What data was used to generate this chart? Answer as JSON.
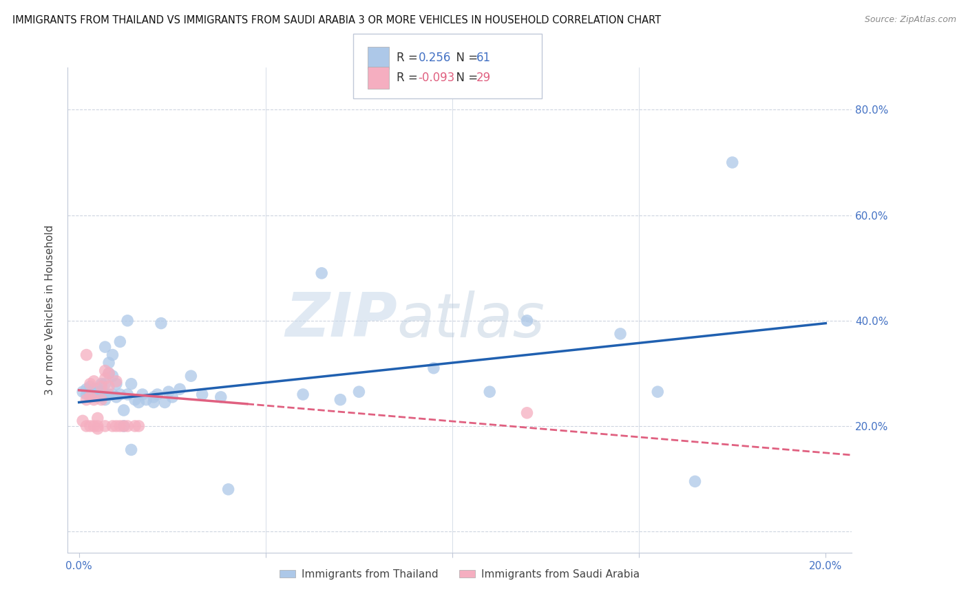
{
  "title": "IMMIGRANTS FROM THAILAND VS IMMIGRANTS FROM SAUDI ARABIA 3 OR MORE VEHICLES IN HOUSEHOLD CORRELATION CHART",
  "source": "Source: ZipAtlas.com",
  "ylabel": "3 or more Vehicles in Household",
  "y_ticks": [
    0.0,
    0.2,
    0.4,
    0.6,
    0.8
  ],
  "y_tick_labels": [
    "",
    "20.0%",
    "40.0%",
    "60.0%",
    "80.0%"
  ],
  "x_ticks": [
    0.0,
    0.05,
    0.1,
    0.15,
    0.2
  ],
  "x_tick_labels": [
    "0.0%",
    "",
    "",
    "",
    "20.0%"
  ],
  "xlim": [
    -0.003,
    0.207
  ],
  "ylim": [
    -0.04,
    0.88
  ],
  "r_thailand": "0.256",
  "n_thailand": "61",
  "r_saudi": "-0.093",
  "n_saudi": "29",
  "thailand_color": "#adc8e8",
  "saudi_color": "#f5aec0",
  "trend_thailand_color": "#2060b0",
  "trend_saudi_color": "#e06080",
  "watermark_zip": "ZIP",
  "watermark_atlas": "atlas",
  "thailand_scatter_x": [
    0.001,
    0.002,
    0.002,
    0.003,
    0.003,
    0.003,
    0.004,
    0.004,
    0.005,
    0.005,
    0.005,
    0.006,
    0.006,
    0.006,
    0.007,
    0.007,
    0.007,
    0.007,
    0.008,
    0.008,
    0.008,
    0.009,
    0.009,
    0.009,
    0.01,
    0.01,
    0.011,
    0.011,
    0.012,
    0.012,
    0.013,
    0.013,
    0.014,
    0.014,
    0.015,
    0.016,
    0.017,
    0.018,
    0.02,
    0.02,
    0.021,
    0.022,
    0.023,
    0.024,
    0.025,
    0.027,
    0.03,
    0.033,
    0.038,
    0.04,
    0.06,
    0.065,
    0.07,
    0.075,
    0.095,
    0.11,
    0.12,
    0.145,
    0.155,
    0.165,
    0.175
  ],
  "thailand_scatter_y": [
    0.265,
    0.26,
    0.27,
    0.255,
    0.26,
    0.275,
    0.255,
    0.27,
    0.255,
    0.26,
    0.27,
    0.255,
    0.265,
    0.28,
    0.25,
    0.28,
    0.35,
    0.26,
    0.26,
    0.3,
    0.32,
    0.26,
    0.295,
    0.335,
    0.255,
    0.28,
    0.26,
    0.36,
    0.2,
    0.23,
    0.26,
    0.4,
    0.155,
    0.28,
    0.25,
    0.245,
    0.26,
    0.25,
    0.245,
    0.255,
    0.26,
    0.395,
    0.245,
    0.265,
    0.255,
    0.27,
    0.295,
    0.26,
    0.255,
    0.08,
    0.26,
    0.49,
    0.25,
    0.265,
    0.31,
    0.265,
    0.4,
    0.375,
    0.265,
    0.095,
    0.7
  ],
  "saudi_scatter_x": [
    0.001,
    0.002,
    0.002,
    0.002,
    0.003,
    0.003,
    0.003,
    0.004,
    0.004,
    0.004,
    0.005,
    0.005,
    0.005,
    0.006,
    0.006,
    0.007,
    0.007,
    0.007,
    0.008,
    0.008,
    0.009,
    0.01,
    0.01,
    0.011,
    0.012,
    0.013,
    0.015,
    0.016,
    0.12
  ],
  "saudi_scatter_y": [
    0.21,
    0.2,
    0.25,
    0.335,
    0.2,
    0.255,
    0.28,
    0.25,
    0.285,
    0.2,
    0.215,
    0.2,
    0.195,
    0.25,
    0.275,
    0.29,
    0.305,
    0.2,
    0.3,
    0.275,
    0.2,
    0.285,
    0.2,
    0.2,
    0.2,
    0.2,
    0.2,
    0.2,
    0.225
  ],
  "trend_thailand_x0": 0.0,
  "trend_thailand_x1": 0.2,
  "trend_thailand_y0": 0.245,
  "trend_thailand_y1": 0.395,
  "trend_saudi_solid_x0": 0.0,
  "trend_saudi_solid_x1": 0.045,
  "trend_saudi_solid_y0": 0.268,
  "trend_saudi_solid_y1": 0.242,
  "trend_saudi_dash_x0": 0.045,
  "trend_saudi_dash_x1": 0.207,
  "trend_saudi_dash_y0": 0.242,
  "trend_saudi_dash_y1": 0.145
}
